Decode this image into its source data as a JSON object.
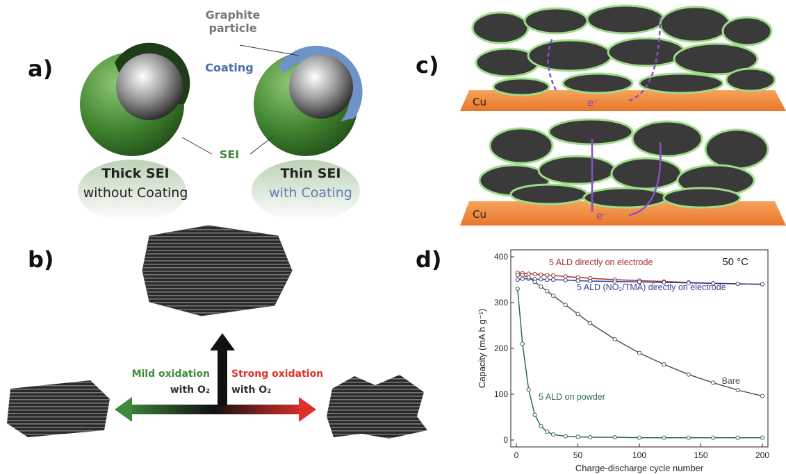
{
  "panels": {
    "a": {
      "label": "a)",
      "graphite": "Graphite particle",
      "coating": "Coating",
      "sei": "SEI",
      "left_title": "Thick SEI",
      "left_sub": "without Coating",
      "right_title": "Thin SEI",
      "right_sub": "with Coating"
    },
    "b": {
      "label": "b)",
      "mild": "Mild oxidation",
      "mild_sub": "with O₂",
      "strong": "Strong oxidation",
      "strong_sub": "with O₂"
    },
    "c": {
      "label": "c)",
      "top_metal": "Cu",
      "top_electron": "e⁻",
      "bottom_metal": "Cu",
      "bottom_electron": "e⁻"
    },
    "d": {
      "label": "d)"
    }
  },
  "chart_data": {
    "type": "line",
    "xlabel": "Charge-discharge cycle number",
    "ylabel": "Capacity (mA h g⁻¹)",
    "annotation": "50 °C",
    "x": [
      1,
      5,
      10,
      15,
      20,
      25,
      30,
      40,
      50,
      60,
      80,
      100,
      120,
      140,
      160,
      180,
      200
    ],
    "xlim": [
      0,
      200
    ],
    "xticks": [
      0,
      50,
      100,
      150,
      200
    ],
    "ylim": [
      0,
      400
    ],
    "yticks": [
      0,
      100,
      200,
      300,
      400
    ],
    "series": [
      {
        "name": "5 ALD directly on electrode",
        "color": "#a8322d",
        "values": [
          365,
          364,
          363,
          362,
          361,
          360,
          359,
          357,
          355,
          353,
          350,
          348,
          346,
          344,
          342,
          341,
          340
        ]
      },
      {
        "name": "5 ALD (NO₂/TMA) directly on electrode",
        "color": "#3a3f95",
        "values": [
          350,
          352,
          352,
          351,
          351,
          350,
          350,
          349,
          348,
          347,
          346,
          345,
          344,
          343,
          342,
          341,
          340
        ]
      },
      {
        "name": "Bare",
        "color": "#555555",
        "values": [
          360,
          360,
          355,
          345,
          335,
          325,
          315,
          295,
          275,
          255,
          220,
          190,
          165,
          143,
          125,
          109,
          96
        ]
      },
      {
        "name": "5 ALD on powder",
        "color": "#2e6b4f",
        "values": [
          330,
          210,
          110,
          55,
          30,
          18,
          12,
          8,
          7,
          6,
          6,
          5,
          5,
          5,
          5,
          5,
          5
        ]
      }
    ]
  }
}
